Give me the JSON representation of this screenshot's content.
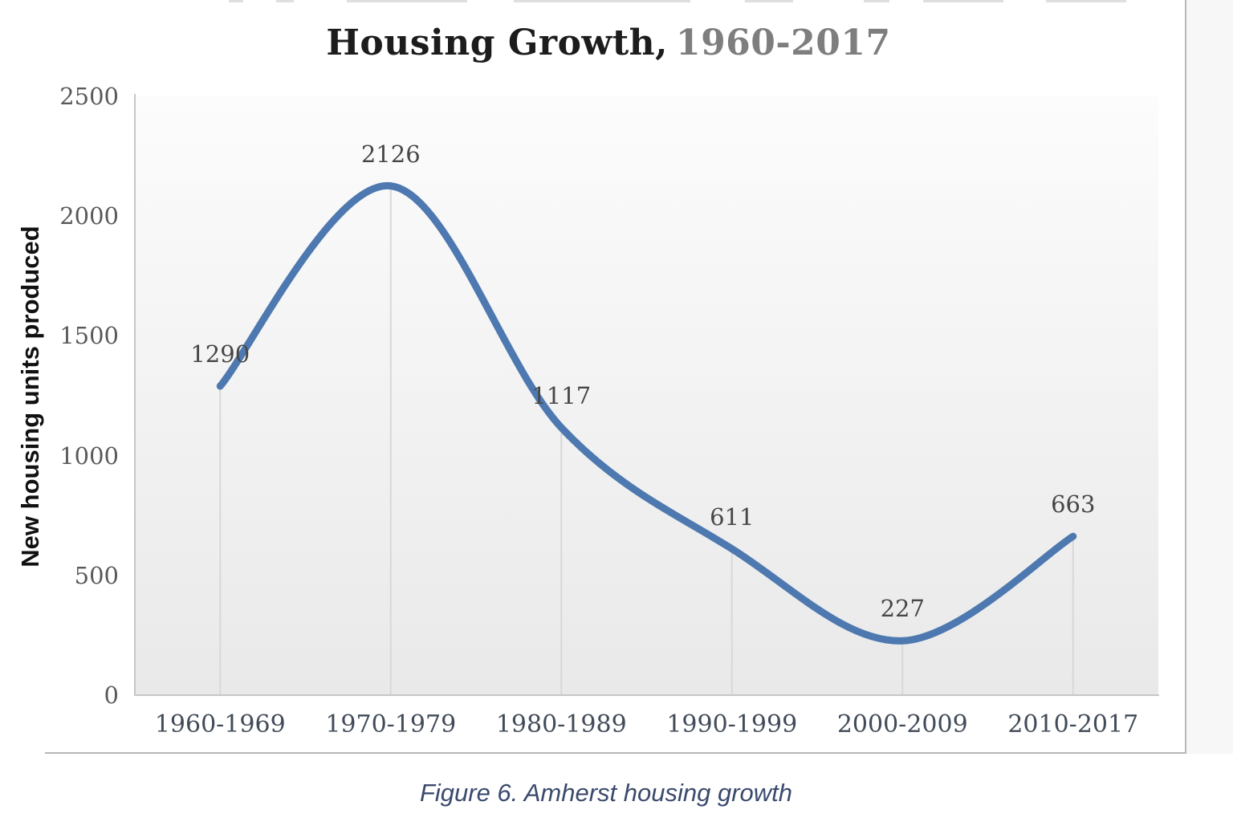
{
  "page": {
    "title_main": "Housing Growth,",
    "title_period": "1960-2017",
    "ylabel": "New housing units produced",
    "caption": "Figure 6. Amherst housing growth"
  },
  "colors": {
    "line": "#4d79b0",
    "title_text": "#1c1c1c",
    "title_period_text": "#7e7e7e",
    "axis_line": "#c5c7c9",
    "dropline": "#d8d8d8",
    "plot_fill_top": "#fcfcfc",
    "plot_fill_bottom": "#e9e9e9",
    "ytick_text": "#5a5a5a",
    "xlabel_text": "#414b59",
    "data_label_text": "#474747",
    "caption_text": "#3a4a6d",
    "page_border": "#b7b7b7"
  },
  "chart_data": {
    "type": "line",
    "title": "Housing Growth, 1960-2017",
    "xlabel": "",
    "ylabel": "New housing units produced",
    "categories": [
      "1960-1969",
      "1970-1979",
      "1980-1989",
      "1990-1999",
      "2000-2009",
      "2010-2017"
    ],
    "series": [
      {
        "name": "New housing units produced",
        "values": [
          1290,
          2126,
          1117,
          611,
          227,
          663
        ]
      }
    ],
    "data_labels": [
      "1290",
      "2126",
      "1117",
      "611",
      "227",
      "663"
    ],
    "ylim": [
      0,
      2500
    ],
    "ytick_values": [
      0,
      500,
      1000,
      1500,
      2000,
      2500
    ],
    "ytick_labels": [
      "0",
      "500",
      "1000",
      "1500",
      "2000",
      "2500"
    ],
    "grid": "vertical droplines from each point to baseline only",
    "legend": "none",
    "smooth": true
  }
}
